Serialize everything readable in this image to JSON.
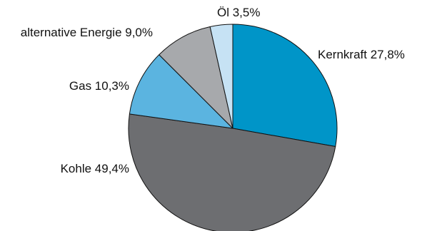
{
  "chart_data": {
    "type": "pie",
    "title": "",
    "start": "12 o'clock",
    "direction": "clockwise",
    "slices": [
      {
        "key": "kernkraft",
        "label": "Kernkraft",
        "value": 27.8,
        "value_text": "27,8%",
        "display": "Kernkraft 27,8%",
        "color": "#0095c8"
      },
      {
        "key": "kohle",
        "label": "Kohle",
        "value": 49.4,
        "value_text": "49,4%",
        "display": "Kohle 49,4%",
        "color": "#6d6e71"
      },
      {
        "key": "gas",
        "label": "Gas",
        "value": 10.3,
        "value_text": "10,3%",
        "display": "Gas 10,3%",
        "color": "#5bb4e0"
      },
      {
        "key": "alternative-energie",
        "label": "alternative Energie",
        "value": 9.0,
        "value_text": "9,0%",
        "display": "alternative Energie 9,0%",
        "color": "#a7a9ac"
      },
      {
        "key": "oel",
        "label": "Öl",
        "value": 3.5,
        "value_text": "3,5%",
        "display": "Öl 3,5%",
        "color": "#c6e2f4"
      }
    ]
  }
}
